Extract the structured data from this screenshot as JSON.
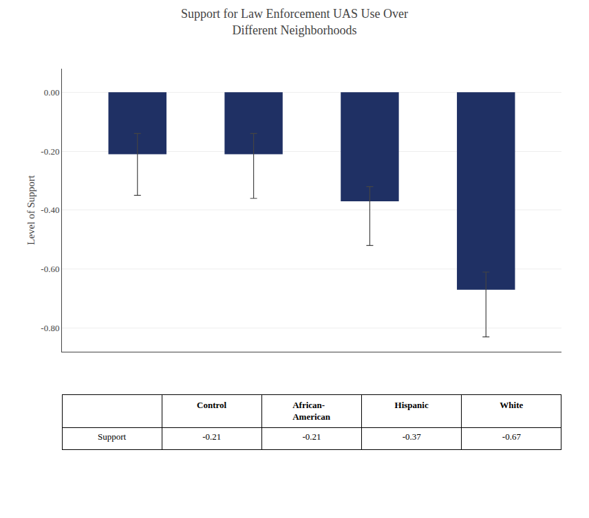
{
  "chart_data": {
    "type": "bar",
    "title": "Support for Law Enforcement UAS Use Over\nDifferent Neighborhoods",
    "ylabel": "Level of Support",
    "categories": [
      "Control",
      "African-\nAmerican",
      "Hispanic",
      "White"
    ],
    "values": [
      -0.21,
      -0.21,
      -0.37,
      -0.67
    ],
    "errors_up": [
      0.07,
      0.07,
      0.05,
      0.06
    ],
    "errors_down": [
      0.14,
      0.15,
      0.15,
      0.16
    ],
    "color": "#1F3064",
    "ylim": [
      -0.88,
      0.08
    ],
    "yticks": [
      {
        "value": 0.0,
        "label": "0.00"
      },
      {
        "value": -0.2,
        "label": "-0.20"
      },
      {
        "value": -0.4,
        "label": "-0.40"
      },
      {
        "value": -0.6,
        "label": "-0.60"
      },
      {
        "value": -0.8,
        "label": "-0.80"
      }
    ],
    "grid": true,
    "tick_labels": "y",
    "table": {
      "row_label": "Support",
      "col_labels": [
        "Control",
        "African-\nAmerican",
        "Hispanic",
        "White"
      ],
      "values": [
        "-0.21",
        "-0.21",
        "-0.37",
        "-0.67"
      ]
    }
  }
}
